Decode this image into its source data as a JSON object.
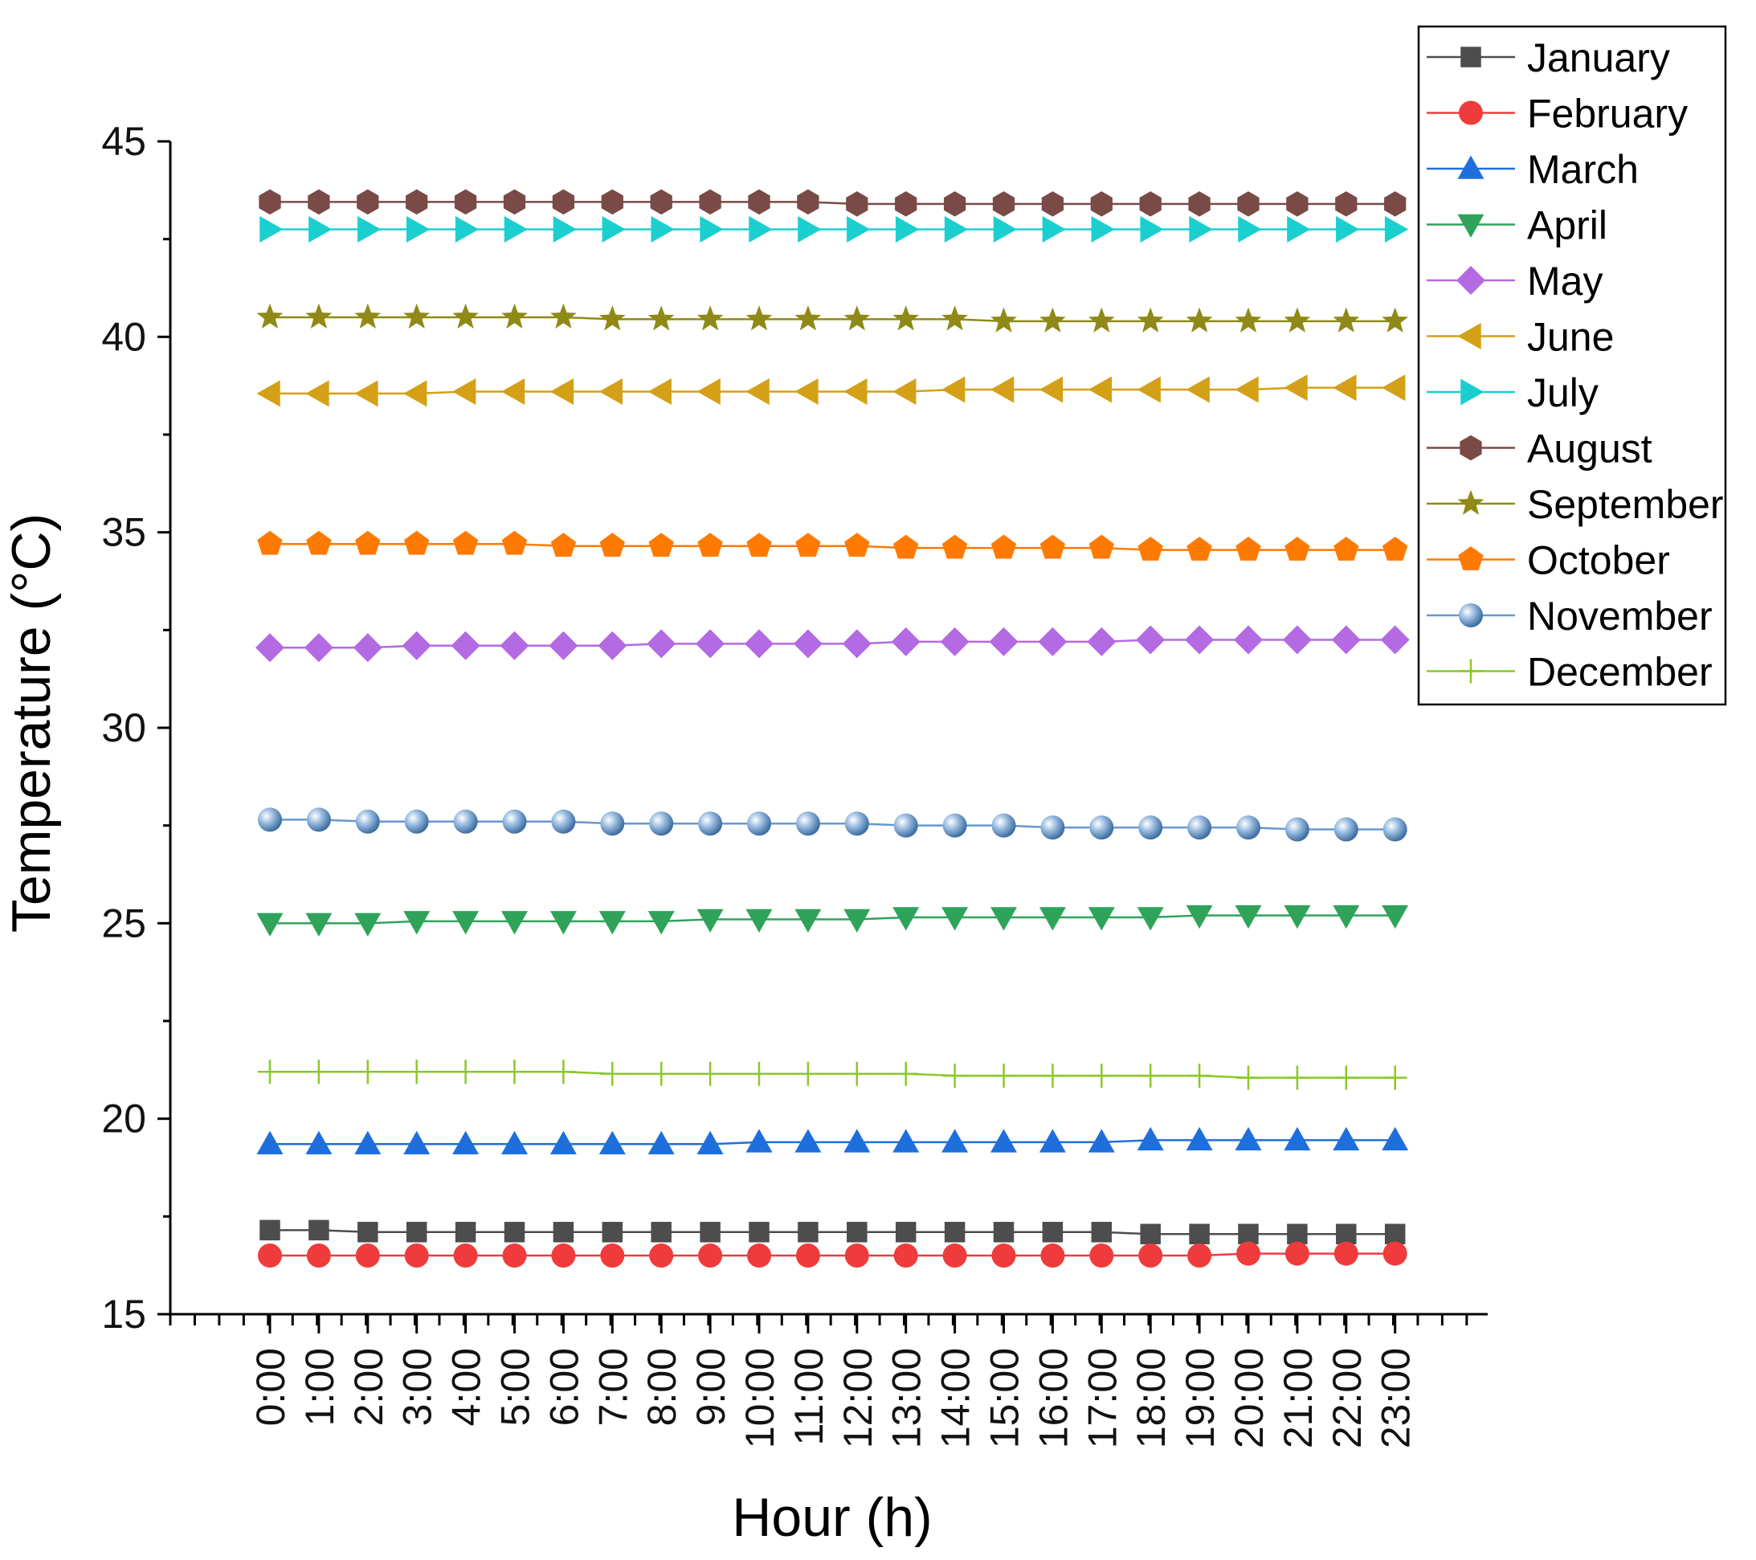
{
  "chart_data": {
    "type": "line",
    "title": "",
    "xlabel": "Hour (h)",
    "ylabel": "Temperature (°C)",
    "ylim": [
      15,
      45
    ],
    "yticks": [
      15,
      20,
      25,
      30,
      35,
      40,
      45
    ],
    "grid": false,
    "legend_position": "top-right",
    "categories": [
      "0:00",
      "1:00",
      "2:00",
      "3:00",
      "4:00",
      "5:00",
      "6:00",
      "7:00",
      "8:00",
      "9:00",
      "10:00",
      "11:00",
      "12:00",
      "13:00",
      "14:00",
      "15:00",
      "16:00",
      "17:00",
      "18:00",
      "19:00",
      "20:00",
      "21:00",
      "22:00",
      "23:00"
    ],
    "series": [
      {
        "name": "January",
        "color": "#4d4d4d",
        "marker": "square",
        "values": [
          17.15,
          17.15,
          17.1,
          17.1,
          17.1,
          17.1,
          17.1,
          17.1,
          17.1,
          17.1,
          17.1,
          17.1,
          17.1,
          17.1,
          17.1,
          17.1,
          17.1,
          17.1,
          17.05,
          17.05,
          17.05,
          17.05,
          17.05,
          17.05
        ]
      },
      {
        "name": "February",
        "color": "#ef3b3b",
        "marker": "circle",
        "values": [
          16.5,
          16.5,
          16.5,
          16.5,
          16.5,
          16.5,
          16.5,
          16.5,
          16.5,
          16.5,
          16.5,
          16.5,
          16.5,
          16.5,
          16.5,
          16.5,
          16.5,
          16.5,
          16.5,
          16.5,
          16.55,
          16.55,
          16.55,
          16.55
        ]
      },
      {
        "name": "March",
        "color": "#1e6fdc",
        "marker": "triangle-up",
        "values": [
          19.35,
          19.35,
          19.35,
          19.35,
          19.35,
          19.35,
          19.35,
          19.35,
          19.35,
          19.35,
          19.4,
          19.4,
          19.4,
          19.4,
          19.4,
          19.4,
          19.4,
          19.4,
          19.45,
          19.45,
          19.45,
          19.45,
          19.45,
          19.45
        ]
      },
      {
        "name": "April",
        "color": "#2fa35a",
        "marker": "triangle-down",
        "values": [
          25.0,
          25.0,
          25.0,
          25.05,
          25.05,
          25.05,
          25.05,
          25.05,
          25.05,
          25.1,
          25.1,
          25.1,
          25.1,
          25.15,
          25.15,
          25.15,
          25.15,
          25.15,
          25.15,
          25.2,
          25.2,
          25.2,
          25.2,
          25.2
        ]
      },
      {
        "name": "May",
        "color": "#b36ae2",
        "marker": "diamond",
        "values": [
          32.05,
          32.05,
          32.05,
          32.1,
          32.1,
          32.1,
          32.1,
          32.1,
          32.15,
          32.15,
          32.15,
          32.15,
          32.15,
          32.2,
          32.2,
          32.2,
          32.2,
          32.2,
          32.25,
          32.25,
          32.25,
          32.25,
          32.25,
          32.25
        ]
      },
      {
        "name": "June",
        "color": "#d4a017",
        "marker": "triangle-left",
        "values": [
          38.55,
          38.55,
          38.55,
          38.55,
          38.6,
          38.6,
          38.6,
          38.6,
          38.6,
          38.6,
          38.6,
          38.6,
          38.6,
          38.6,
          38.65,
          38.65,
          38.65,
          38.65,
          38.65,
          38.65,
          38.65,
          38.7,
          38.7,
          38.7
        ]
      },
      {
        "name": "July",
        "color": "#1ccfcf",
        "marker": "triangle-right",
        "values": [
          42.75,
          42.75,
          42.75,
          42.75,
          42.75,
          42.75,
          42.75,
          42.75,
          42.75,
          42.75,
          42.75,
          42.75,
          42.75,
          42.75,
          42.75,
          42.75,
          42.75,
          42.75,
          42.75,
          42.75,
          42.75,
          42.75,
          42.75,
          42.75
        ]
      },
      {
        "name": "August",
        "color": "#7a4a47",
        "marker": "hexagon",
        "values": [
          43.45,
          43.45,
          43.45,
          43.45,
          43.45,
          43.45,
          43.45,
          43.45,
          43.45,
          43.45,
          43.45,
          43.45,
          43.4,
          43.4,
          43.4,
          43.4,
          43.4,
          43.4,
          43.4,
          43.4,
          43.4,
          43.4,
          43.4,
          43.4
        ]
      },
      {
        "name": "September",
        "color": "#8f8a17",
        "marker": "star",
        "values": [
          40.5,
          40.5,
          40.5,
          40.5,
          40.5,
          40.5,
          40.5,
          40.45,
          40.45,
          40.45,
          40.45,
          40.45,
          40.45,
          40.45,
          40.45,
          40.4,
          40.4,
          40.4,
          40.4,
          40.4,
          40.4,
          40.4,
          40.4,
          40.4
        ]
      },
      {
        "name": "October",
        "color": "#ff7a00",
        "marker": "pentagon",
        "values": [
          34.7,
          34.7,
          34.7,
          34.7,
          34.7,
          34.7,
          34.65,
          34.65,
          34.65,
          34.65,
          34.65,
          34.65,
          34.65,
          34.6,
          34.6,
          34.6,
          34.6,
          34.6,
          34.55,
          34.55,
          34.55,
          34.55,
          34.55,
          34.55
        ]
      },
      {
        "name": "November",
        "color": "#6699cc",
        "marker": "sphere",
        "values": [
          27.65,
          27.65,
          27.6,
          27.6,
          27.6,
          27.6,
          27.6,
          27.55,
          27.55,
          27.55,
          27.55,
          27.55,
          27.55,
          27.5,
          27.5,
          27.5,
          27.45,
          27.45,
          27.45,
          27.45,
          27.45,
          27.4,
          27.4,
          27.4
        ]
      },
      {
        "name": "December",
        "color": "#8ac926",
        "marker": "plus",
        "values": [
          21.2,
          21.2,
          21.2,
          21.2,
          21.2,
          21.2,
          21.2,
          21.15,
          21.15,
          21.15,
          21.15,
          21.15,
          21.15,
          21.15,
          21.1,
          21.1,
          21.1,
          21.1,
          21.1,
          21.1,
          21.05,
          21.05,
          21.05,
          21.05
        ]
      }
    ]
  }
}
